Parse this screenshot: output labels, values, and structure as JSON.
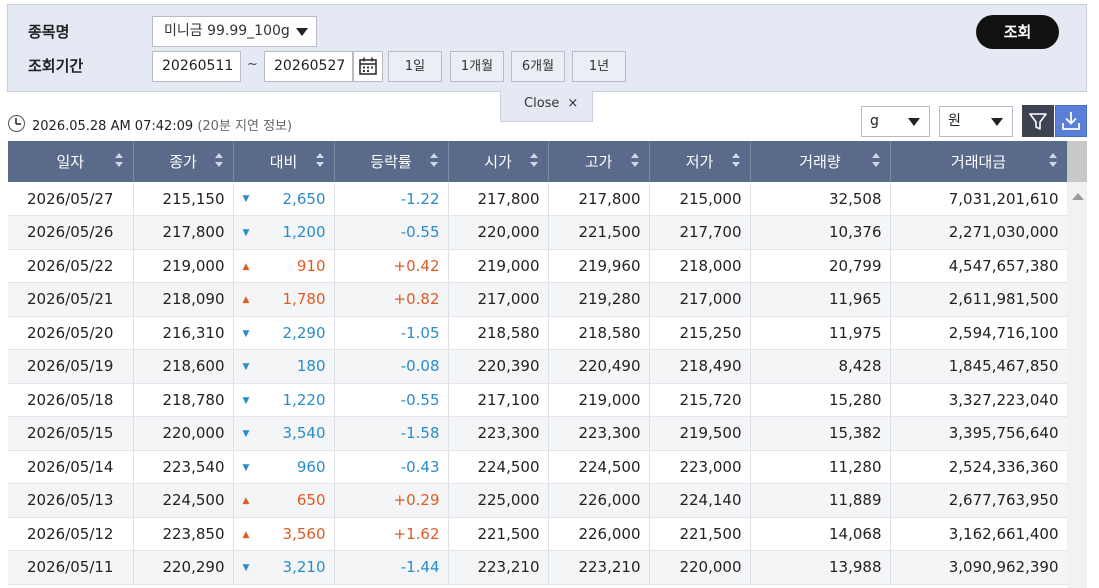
{
  "filter": {
    "stock_label": "종목명",
    "stock_value": "미니금 99.99_100g",
    "period_label": "조회기간",
    "start_date": "20260511",
    "range_sep": "~",
    "end_date": "20260527",
    "range_buttons": [
      "1일",
      "1개월",
      "6개월",
      "1년"
    ],
    "search_label": "조회",
    "close_label": "Close",
    "close_x": "×"
  },
  "status": {
    "timestamp": "2026.05.28 AM 07:42:09",
    "delay_note": "(20분 지연 정보)"
  },
  "units": {
    "weight": "g",
    "currency": "원"
  },
  "colors": {
    "header_bg": "#596a8a",
    "up": "#e05a24",
    "down": "#2a8cc8",
    "search_bg": "#111111",
    "download_bg": "#5b7fd9"
  },
  "table": {
    "headers": [
      "일자",
      "종가",
      "대비",
      "등락률",
      "시가",
      "고가",
      "저가",
      "거래량",
      "거래대금"
    ],
    "rows": [
      {
        "date": "2026/05/27",
        "close": "215,150",
        "dir": "down",
        "change": "2,650",
        "rate": "-1.22",
        "open": "217,800",
        "high": "217,800",
        "low": "215,000",
        "volume": "32,508",
        "amount": "7,031,201,610"
      },
      {
        "date": "2026/05/26",
        "close": "217,800",
        "dir": "down",
        "change": "1,200",
        "rate": "-0.55",
        "open": "220,000",
        "high": "221,500",
        "low": "217,700",
        "volume": "10,376",
        "amount": "2,271,030,000"
      },
      {
        "date": "2026/05/22",
        "close": "219,000",
        "dir": "up",
        "change": "910",
        "rate": "+0.42",
        "open": "219,000",
        "high": "219,960",
        "low": "218,000",
        "volume": "20,799",
        "amount": "4,547,657,380"
      },
      {
        "date": "2026/05/21",
        "close": "218,090",
        "dir": "up",
        "change": "1,780",
        "rate": "+0.82",
        "open": "217,000",
        "high": "219,280",
        "low": "217,000",
        "volume": "11,965",
        "amount": "2,611,981,500"
      },
      {
        "date": "2026/05/20",
        "close": "216,310",
        "dir": "down",
        "change": "2,290",
        "rate": "-1.05",
        "open": "218,580",
        "high": "218,580",
        "low": "215,250",
        "volume": "11,975",
        "amount": "2,594,716,100"
      },
      {
        "date": "2026/05/19",
        "close": "218,600",
        "dir": "down",
        "change": "180",
        "rate": "-0.08",
        "open": "220,390",
        "high": "220,490",
        "low": "218,490",
        "volume": "8,428",
        "amount": "1,845,467,850"
      },
      {
        "date": "2026/05/18",
        "close": "218,780",
        "dir": "down",
        "change": "1,220",
        "rate": "-0.55",
        "open": "217,100",
        "high": "219,000",
        "low": "215,720",
        "volume": "15,280",
        "amount": "3,327,223,040"
      },
      {
        "date": "2026/05/15",
        "close": "220,000",
        "dir": "down",
        "change": "3,540",
        "rate": "-1.58",
        "open": "223,300",
        "high": "223,300",
        "low": "219,500",
        "volume": "15,382",
        "amount": "3,395,756,640"
      },
      {
        "date": "2026/05/14",
        "close": "223,540",
        "dir": "down",
        "change": "960",
        "rate": "-0.43",
        "open": "224,500",
        "high": "224,500",
        "low": "223,000",
        "volume": "11,280",
        "amount": "2,524,336,360"
      },
      {
        "date": "2026/05/13",
        "close": "224,500",
        "dir": "up",
        "change": "650",
        "rate": "+0.29",
        "open": "225,000",
        "high": "226,000",
        "low": "224,140",
        "volume": "11,889",
        "amount": "2,677,763,950"
      },
      {
        "date": "2026/05/12",
        "close": "223,850",
        "dir": "up",
        "change": "3,560",
        "rate": "+1.62",
        "open": "221,500",
        "high": "226,000",
        "low": "221,500",
        "volume": "14,068",
        "amount": "3,162,661,400"
      },
      {
        "date": "2026/05/11",
        "close": "220,290",
        "dir": "down",
        "change": "3,210",
        "rate": "-1.44",
        "open": "223,210",
        "high": "223,210",
        "low": "220,000",
        "volume": "13,988",
        "amount": "3,090,962,390"
      }
    ]
  }
}
